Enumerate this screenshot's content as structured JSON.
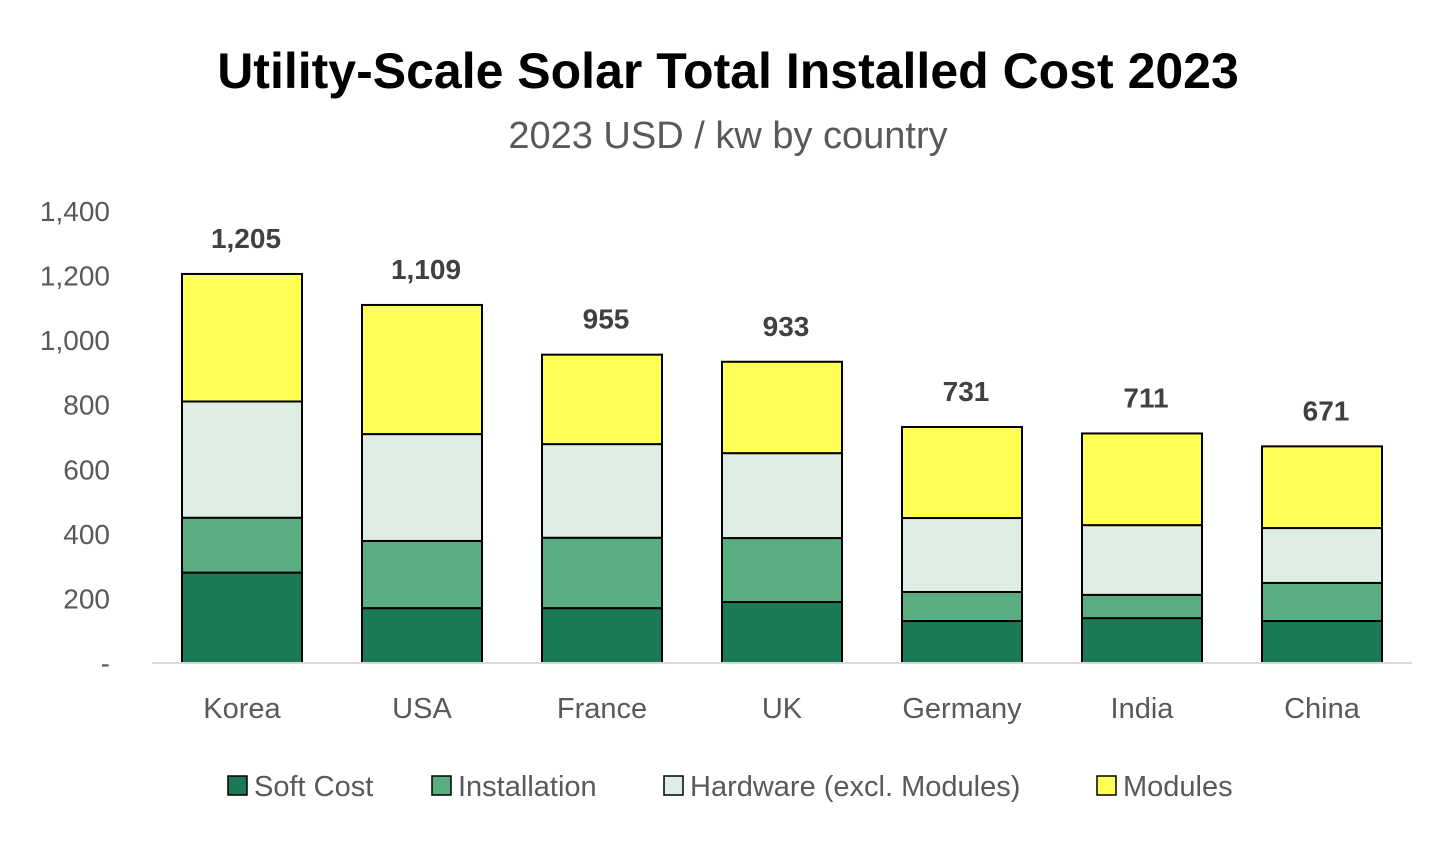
{
  "chart_data": {
    "type": "bar",
    "stacked": true,
    "title": "Utility-Scale Solar Total Installed Cost 2023",
    "subtitle": "2023 USD / kw by country",
    "xlabel": "",
    "ylabel": "",
    "ylim": [
      0,
      1400
    ],
    "yticks": [
      0,
      200,
      400,
      600,
      800,
      1000,
      1200,
      1400
    ],
    "ytick_labels": [
      "-",
      "200",
      "400",
      "600",
      "800",
      "1,000",
      "1,200",
      "1,400"
    ],
    "grid": false,
    "legend_position": "bottom",
    "categories": [
      "Korea",
      "USA",
      "France",
      "UK",
      "Germany",
      "India",
      "China"
    ],
    "series": [
      {
        "name": "Soft Cost",
        "color": "#1a7a55",
        "values": [
          280,
          170,
          170,
          189,
          130,
          139,
          130
        ]
      },
      {
        "name": "Installation",
        "color": "#5aad80",
        "values": [
          170,
          208,
          218,
          198,
          90,
          72,
          118
        ]
      },
      {
        "name": "Hardware (excl. Modules)",
        "color": "#deeee5",
        "values": [
          360,
          331,
          290,
          263,
          229,
          216,
          170
        ]
      },
      {
        "name": "Modules",
        "color": "#ffff55",
        "values": [
          395,
          400,
          277,
          283,
          282,
          284,
          253
        ]
      }
    ],
    "totals": [
      1205,
      1109,
      955,
      933,
      731,
      711,
      671
    ],
    "total_labels": [
      "1,205",
      "1,109",
      "955",
      "933",
      "731",
      "711",
      "671"
    ]
  }
}
